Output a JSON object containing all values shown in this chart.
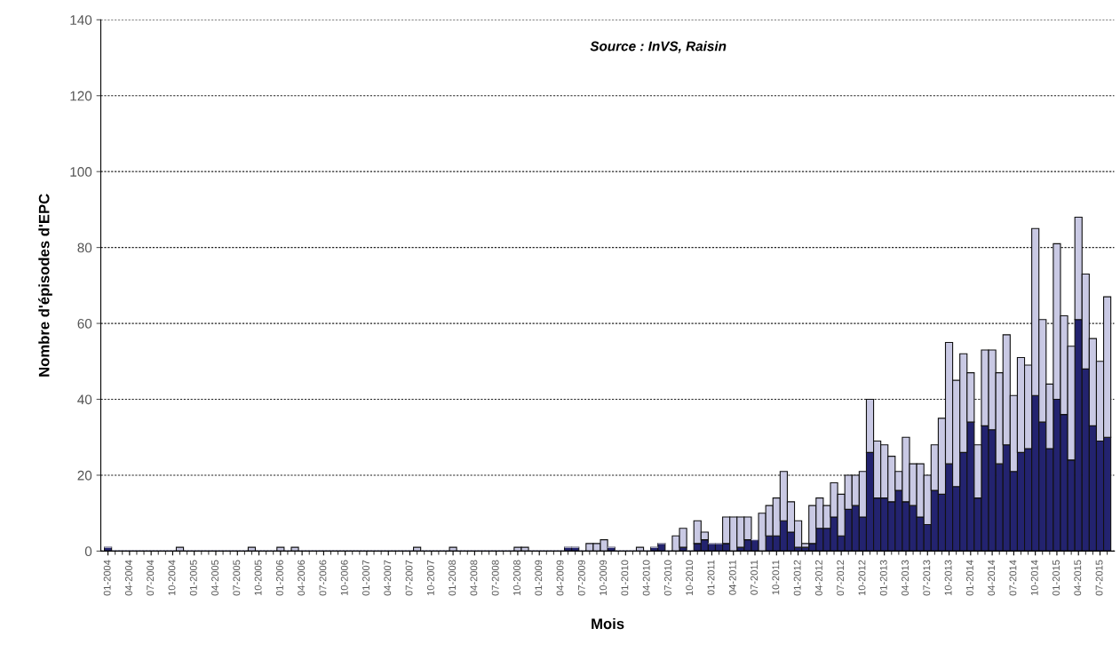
{
  "chart_data": {
    "type": "bar",
    "stacked": true,
    "xlabel": "Mois",
    "ylabel": "Nombre d'épisodes d'EPC",
    "annotations": [
      "Source : InVS, Raisin"
    ],
    "ylim": [
      0,
      140
    ],
    "yticks": [
      0,
      20,
      40,
      60,
      80,
      100,
      120,
      140
    ],
    "grid": "y",
    "categories": [
      "01-2004",
      null,
      null,
      "04-2004",
      null,
      null,
      "07-2004",
      null,
      null,
      "10-2004",
      null,
      null,
      "01-2005",
      null,
      null,
      "04-2005",
      null,
      null,
      "07-2005",
      null,
      null,
      "10-2005",
      null,
      null,
      "01-2006",
      null,
      null,
      "04-2006",
      null,
      null,
      "07-2006",
      null,
      null,
      "10-2006",
      null,
      null,
      "01-2007",
      null,
      null,
      "04-2007",
      null,
      null,
      "07-2007",
      null,
      null,
      "10-2007",
      null,
      null,
      "01-2008",
      null,
      null,
      "04-2008",
      null,
      null,
      "07-2008",
      null,
      null,
      "10-2008",
      null,
      null,
      "01-2009",
      null,
      null,
      "04-2009",
      null,
      null,
      "07-2009",
      null,
      null,
      "10-2009",
      null,
      null,
      "01-2010",
      null,
      null,
      "04-2010",
      null,
      null,
      "07-2010",
      null,
      null,
      "10-2010",
      null,
      null,
      "01-2011",
      null,
      null,
      "04-2011",
      null,
      null,
      "07-2011",
      null,
      null,
      "10-2011",
      null,
      null,
      "01-2012",
      null,
      null,
      "04-2012",
      null,
      null,
      "07-2012",
      null,
      null,
      "10-2012",
      null,
      null,
      "01-2013",
      null,
      null,
      "04-2013",
      null,
      null,
      "07-2013",
      null,
      null,
      "10-2013",
      null,
      null,
      "01-2014",
      null,
      null,
      "04-2014",
      null,
      null,
      "07-2014",
      null,
      null,
      "10-2014",
      null,
      null,
      "01-2015",
      null,
      null,
      "04-2015",
      null,
      null,
      "07-2015",
      null
    ],
    "series": [
      {
        "color": "#23236f",
        "values": [
          1,
          0,
          0,
          0,
          0,
          0,
          0,
          0,
          0,
          0,
          0,
          0,
          0,
          0,
          0,
          0,
          0,
          0,
          0,
          0,
          0,
          0,
          0,
          0,
          0,
          0,
          0,
          0,
          0,
          0,
          0,
          0,
          0,
          0,
          0,
          0,
          0,
          0,
          0,
          0,
          0,
          0,
          0,
          0,
          0,
          0,
          0,
          0,
          0,
          0,
          0,
          0,
          0,
          0,
          0,
          0,
          0,
          0,
          0,
          0,
          0,
          0,
          0,
          0,
          1,
          1,
          0,
          0,
          0,
          0,
          1,
          0,
          0,
          0,
          0,
          0,
          1,
          2,
          0,
          0,
          1,
          0,
          2,
          3,
          2,
          2,
          2,
          0,
          1,
          3,
          3,
          0,
          4,
          4,
          8,
          5,
          1,
          1,
          2,
          6,
          6,
          9,
          4,
          11,
          12,
          9,
          26,
          14,
          14,
          13,
          16,
          13,
          12,
          9,
          7,
          16,
          15,
          23,
          17,
          26,
          34,
          14,
          33,
          32,
          23,
          28,
          21,
          26,
          27,
          41,
          34,
          27,
          40,
          36,
          24,
          61,
          48,
          33,
          29,
          30
        ]
      },
      {
        "color": "#c9c9e4",
        "values": [
          0,
          0,
          0,
          0,
          0,
          0,
          0,
          0,
          0,
          0,
          1,
          0,
          0,
          0,
          0,
          0,
          0,
          0,
          0,
          0,
          1,
          0,
          0,
          0,
          1,
          0,
          1,
          0,
          0,
          0,
          0,
          0,
          0,
          0,
          0,
          0,
          0,
          0,
          0,
          0,
          0,
          0,
          0,
          1,
          0,
          0,
          0,
          0,
          1,
          0,
          0,
          0,
          0,
          0,
          0,
          0,
          0,
          1,
          1,
          0,
          0,
          0,
          0,
          0,
          0,
          0,
          0,
          2,
          2,
          3,
          0,
          0,
          0,
          0,
          1,
          0,
          0,
          0,
          0,
          4,
          5,
          0,
          6,
          2,
          0,
          0,
          7,
          9,
          8,
          6,
          0,
          10,
          8,
          10,
          13,
          8,
          7,
          1,
          10,
          8,
          6,
          9,
          11,
          9,
          8,
          12,
          14,
          15,
          14,
          12,
          5,
          17,
          11,
          14,
          13,
          12,
          20,
          32,
          28,
          26,
          13,
          14,
          20,
          21,
          24,
          29,
          20,
          25,
          22,
          44,
          27,
          17,
          41,
          26,
          30,
          27,
          25,
          23,
          21,
          37
        ]
      }
    ]
  }
}
